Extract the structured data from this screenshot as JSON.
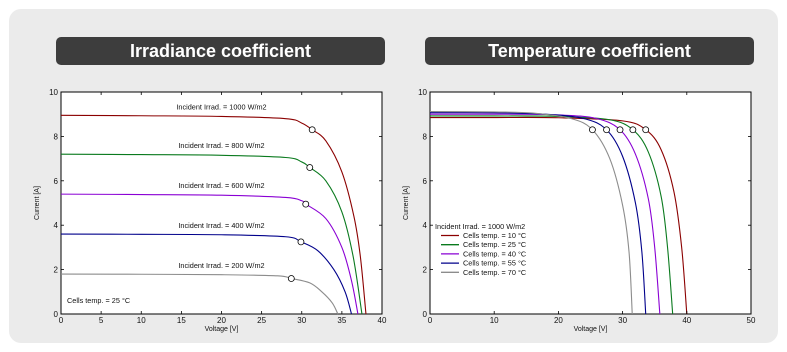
{
  "chart_data": [
    {
      "type": "line",
      "title": "Irradiance coefficient",
      "xlabel": "Voltage [V]",
      "ylabel": "Current [A]",
      "xlim": [
        0,
        40
      ],
      "ylim": [
        0,
        10
      ],
      "xticks": [
        0,
        5,
        10,
        15,
        20,
        25,
        30,
        35,
        40
      ],
      "yticks": [
        0,
        2,
        4,
        6,
        8,
        10
      ],
      "grid": false,
      "note": "Cells temp.  = 25 °C",
      "series": [
        {
          "name": "Incident Irrad. = 1000 W/m2",
          "color": "#8b0000",
          "isc": 8.95,
          "voc": 38.0,
          "mpp": [
            31.3,
            8.3
          ],
          "points": [
            [
              0,
              8.95
            ],
            [
              10,
              8.93
            ],
            [
              20,
              8.9
            ],
            [
              28,
              8.8
            ],
            [
              30,
              8.6
            ],
            [
              31.3,
              8.3
            ],
            [
              33,
              7.8
            ],
            [
              35,
              6.4
            ],
            [
              36.5,
              4.4
            ],
            [
              37.3,
              2.6
            ],
            [
              38,
              0
            ]
          ]
        },
        {
          "name": "Incident Irrad. = 800 W/m2",
          "color": "#0a7a1e",
          "isc": 7.2,
          "voc": 37.5,
          "mpp": [
            31.0,
            6.6
          ],
          "points": [
            [
              0,
              7.2
            ],
            [
              10,
              7.18
            ],
            [
              20,
              7.15
            ],
            [
              28,
              7.05
            ],
            [
              30,
              6.85
            ],
            [
              31,
              6.6
            ],
            [
              33,
              6.0
            ],
            [
              35,
              4.6
            ],
            [
              36.4,
              2.6
            ],
            [
              37.5,
              0
            ]
          ]
        },
        {
          "name": "Incident Irrad. = 600 W/m2",
          "color": "#8a00d4",
          "isc": 5.4,
          "voc": 37.0,
          "mpp": [
            30.5,
            4.95
          ],
          "points": [
            [
              0,
              5.4
            ],
            [
              10,
              5.38
            ],
            [
              20,
              5.35
            ],
            [
              28,
              5.25
            ],
            [
              30,
              5.1
            ],
            [
              30.5,
              4.95
            ],
            [
              33,
              4.3
            ],
            [
              35,
              3.0
            ],
            [
              36.2,
              1.5
            ],
            [
              37,
              0
            ]
          ]
        },
        {
          "name": "Incident Irrad. = 400 W/m2",
          "color": "#00008b",
          "isc": 3.6,
          "voc": 36.2,
          "mpp": [
            29.9,
            3.25
          ],
          "points": [
            [
              0,
              3.6
            ],
            [
              10,
              3.59
            ],
            [
              20,
              3.57
            ],
            [
              28,
              3.48
            ],
            [
              29.9,
              3.25
            ],
            [
              32,
              2.85
            ],
            [
              34,
              2.0
            ],
            [
              35.4,
              1.0
            ],
            [
              36.2,
              0
            ]
          ]
        },
        {
          "name": "Incident Irrad. = 200 W/m2",
          "color": "#8c8c8c",
          "isc": 1.8,
          "voc": 34.5,
          "mpp": [
            28.7,
            1.6
          ],
          "points": [
            [
              0,
              1.8
            ],
            [
              10,
              1.79
            ],
            [
              20,
              1.77
            ],
            [
              27,
              1.72
            ],
            [
              28.7,
              1.6
            ],
            [
              31,
              1.4
            ],
            [
              32.5,
              1.0
            ],
            [
              33.8,
              0.5
            ],
            [
              34.5,
              0
            ]
          ]
        }
      ]
    },
    {
      "type": "line",
      "title": "Temperature coefficient",
      "xlabel": "Voltage [V]",
      "ylabel": "Current [A]",
      "xlim": [
        0,
        50
      ],
      "ylim": [
        0,
        10
      ],
      "xticks": [
        0,
        10,
        20,
        30,
        40,
        50
      ],
      "yticks": [
        0,
        2,
        4,
        6,
        8,
        10
      ],
      "grid": false,
      "legend_title": "Incident Irrad. = 1000 W/m2",
      "legend_position": "lower-left",
      "series": [
        {
          "name": "Cells temp.  = 10 °C",
          "color": "#8b0000",
          "mpp": [
            33.6,
            8.3
          ],
          "points": [
            [
              0,
              8.85
            ],
            [
              10,
              8.85
            ],
            [
              20,
              8.84
            ],
            [
              30,
              8.7
            ],
            [
              33.6,
              8.3
            ],
            [
              36,
              7.4
            ],
            [
              38,
              5.5
            ],
            [
              39.2,
              3.0
            ],
            [
              40,
              0
            ]
          ]
        },
        {
          "name": "Cells temp.  = 25 °C",
          "color": "#0a7a1e",
          "mpp": [
            31.6,
            8.3
          ],
          "points": [
            [
              0,
              8.92
            ],
            [
              10,
              8.92
            ],
            [
              20,
              8.9
            ],
            [
              28,
              8.75
            ],
            [
              31.6,
              8.3
            ],
            [
              34,
              7.3
            ],
            [
              36,
              5.3
            ],
            [
              37,
              3.0
            ],
            [
              37.8,
              0
            ]
          ]
        },
        {
          "name": "Cells temp.  = 40 °C",
          "color": "#8a00d4",
          "mpp": [
            29.6,
            8.3
          ],
          "points": [
            [
              0,
              9.0
            ],
            [
              10,
              9.0
            ],
            [
              20,
              8.97
            ],
            [
              26,
              8.8
            ],
            [
              29.6,
              8.3
            ],
            [
              32,
              7.2
            ],
            [
              34,
              5.2
            ],
            [
              35,
              3.0
            ],
            [
              35.8,
              0
            ]
          ]
        },
        {
          "name": "Cells temp.  = 55 °C",
          "color": "#00008b",
          "mpp": [
            27.5,
            8.3
          ],
          "points": [
            [
              0,
              9.07
            ],
            [
              10,
              9.06
            ],
            [
              18,
              9.0
            ],
            [
              24,
              8.8
            ],
            [
              27.5,
              8.3
            ],
            [
              30,
              7.1
            ],
            [
              32,
              5.0
            ],
            [
              33,
              2.8
            ],
            [
              33.6,
              0
            ]
          ]
        },
        {
          "name": "Cells temp.  = 70 °C",
          "color": "#8c8c8c",
          "mpp": [
            25.3,
            8.3
          ],
          "points": [
            [
              0,
              9.12
            ],
            [
              10,
              9.1
            ],
            [
              16,
              9.05
            ],
            [
              22,
              8.8
            ],
            [
              25.3,
              8.3
            ],
            [
              28,
              7.0
            ],
            [
              30,
              4.9
            ],
            [
              31,
              2.8
            ],
            [
              31.5,
              0
            ]
          ]
        }
      ]
    }
  ]
}
